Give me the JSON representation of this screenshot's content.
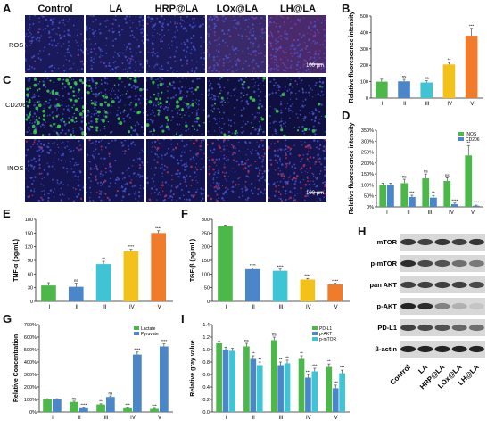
{
  "panels": {
    "A": "A",
    "B": "B",
    "C": "C",
    "D": "D",
    "E": "E",
    "F": "F",
    "G": "G",
    "H": "H",
    "I": "I"
  },
  "groups": [
    "Control",
    "LA",
    "HRP@LA",
    "LOx@LA",
    "LH@LA"
  ],
  "image_rows": {
    "ros": "ROS",
    "cd206": "CD206",
    "inos": "INOS"
  },
  "scale_bar": "100 μm",
  "roman": [
    "I",
    "II",
    "III",
    "IV",
    "V"
  ],
  "colors": {
    "green": "#4cb84a",
    "blue": "#4a86c8",
    "cyan": "#3ec4d4",
    "yellow": "#f2c21b",
    "orange": "#f07b2a",
    "gray": "#a9a9a9"
  },
  "chart_data": [
    {
      "id": "B",
      "type": "bar",
      "ylabel": "Relative fluorescence intensity",
      "categories": [
        "I",
        "II",
        "III",
        "IV",
        "V"
      ],
      "values": [
        100,
        102,
        95,
        205,
        380
      ],
      "errors": [
        15,
        12,
        10,
        12,
        45
      ],
      "sig": [
        "",
        "ns",
        "ns",
        "**",
        "***"
      ],
      "ylim": [
        0,
        500
      ],
      "yticks": [
        "0",
        "100",
        "200",
        "300",
        "400",
        "500"
      ]
    },
    {
      "id": "D",
      "type": "bar",
      "ylabel": "Relative fluorescence intensity",
      "categories": [
        "I",
        "II",
        "III",
        "IV",
        "V"
      ],
      "series": [
        {
          "name": "INOS",
          "values": [
            100,
            108,
            130,
            118,
            235
          ],
          "errors": [
            8,
            18,
            20,
            15,
            45
          ],
          "sig": [
            "",
            "ns",
            "ns",
            "ns",
            "**"
          ]
        },
        {
          "name": "CD206",
          "values": [
            100,
            45,
            42,
            12,
            5
          ],
          "errors": [
            8,
            8,
            10,
            5,
            3
          ],
          "sig": [
            "",
            "***",
            "**",
            "****",
            "****"
          ]
        }
      ],
      "ylim": [
        0,
        350
      ],
      "yticks": [
        "0%",
        "50%",
        "100%",
        "150%",
        "200%",
        "250%",
        "300%",
        "350%"
      ]
    },
    {
      "id": "E",
      "type": "bar",
      "ylabel": "TNF-α (pg/mL)",
      "categories": [
        "I",
        "II",
        "III",
        "IV",
        "V"
      ],
      "values": [
        35,
        32,
        82,
        110,
        150
      ],
      "errors": [
        6,
        8,
        6,
        4,
        5
      ],
      "sig": [
        "",
        "ns",
        "**",
        "****",
        "****"
      ],
      "ylim": [
        0,
        180
      ],
      "yticks": [
        "0",
        "30",
        "60",
        "90",
        "120",
        "150",
        "180"
      ]
    },
    {
      "id": "F",
      "type": "bar",
      "ylabel": "TGF-β (pg/mL)",
      "categories": [
        "I",
        "II",
        "III",
        "IV",
        "V"
      ],
      "values": [
        275,
        118,
        112,
        80,
        62
      ],
      "errors": [
        4,
        5,
        6,
        4,
        4
      ],
      "sig": [
        "",
        "****",
        "****",
        "****",
        "****"
      ],
      "ylim": [
        0,
        300
      ],
      "yticks": [
        "0",
        "50",
        "100",
        "150",
        "200",
        "250",
        "300"
      ]
    },
    {
      "id": "G",
      "type": "bar",
      "ylabel": "Relative Concentration",
      "categories": [
        "I",
        "II",
        "III",
        "IV",
        "V"
      ],
      "series": [
        {
          "name": "Lactate",
          "values": [
            100,
            80,
            60,
            30,
            25
          ],
          "errors": [
            6,
            6,
            5,
            4,
            4
          ],
          "sig": [
            "",
            "ns",
            "**",
            "***",
            "***"
          ]
        },
        {
          "name": "Pyruvate",
          "values": [
            100,
            30,
            120,
            460,
            525
          ],
          "errors": [
            6,
            5,
            8,
            20,
            20
          ],
          "sig": [
            "",
            "****",
            "ns",
            "****",
            "****"
          ]
        }
      ],
      "ylim": [
        0,
        700
      ],
      "yticks": [
        "0%",
        "100%",
        "200%",
        "300%",
        "400%",
        "500%",
        "600%",
        "700%"
      ]
    },
    {
      "id": "I",
      "type": "bar",
      "ylabel": "Relative gray value",
      "categories": [
        "I",
        "II",
        "III",
        "IV",
        "V"
      ],
      "series": [
        {
          "name": "PD-L1",
          "values": [
            1.1,
            1.05,
            1.15,
            0.85,
            0.72
          ],
          "errors": [
            0.04,
            0.05,
            0.05,
            0.05,
            0.05
          ],
          "sig": [
            "",
            "ns",
            "ns",
            "**",
            "**"
          ]
        },
        {
          "name": "p-AKT",
          "values": [
            1.0,
            0.85,
            0.75,
            0.55,
            0.38
          ],
          "errors": [
            0.04,
            0.05,
            0.05,
            0.05,
            0.05
          ],
          "sig": [
            "",
            "**",
            "**",
            "***",
            "***"
          ]
        },
        {
          "name": "p-mTOR",
          "values": [
            0.98,
            0.75,
            0.78,
            0.65,
            0.62
          ],
          "errors": [
            0.04,
            0.05,
            0.05,
            0.05,
            0.05
          ],
          "sig": [
            "",
            "**",
            "**",
            "***",
            "***"
          ]
        }
      ],
      "ylim": [
        0,
        1.4
      ],
      "yticks": [
        "0.0",
        "0.2",
        "0.4",
        "0.6",
        "0.8",
        "1.0",
        "1.2",
        "1.4"
      ]
    }
  ],
  "western_blot": {
    "proteins": [
      "mTOR",
      "p-mTOR",
      "pan AKT",
      "p-AKT",
      "PD-L1",
      "β-actin"
    ],
    "lanes": [
      "Control",
      "LA",
      "HRP@LA",
      "LOx@LA",
      "LH@LA"
    ],
    "intensity": [
      [
        0.85,
        0.8,
        0.85,
        0.8,
        0.85
      ],
      [
        0.9,
        0.75,
        0.7,
        0.55,
        0.5
      ],
      [
        0.8,
        0.8,
        0.8,
        0.8,
        0.75
      ],
      [
        0.95,
        0.9,
        0.45,
        0.2,
        0.1
      ],
      [
        0.8,
        0.75,
        0.7,
        0.6,
        0.55
      ],
      [
        0.95,
        0.95,
        0.95,
        0.95,
        0.95
      ]
    ]
  }
}
